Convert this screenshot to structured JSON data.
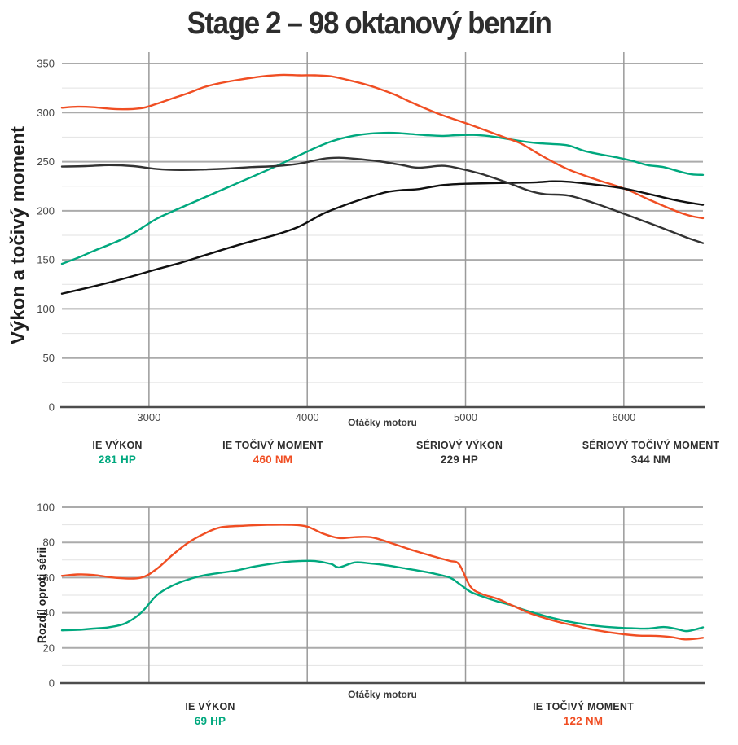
{
  "title": "Stage 2 – 98 oktanový benzín",
  "colors": {
    "green": "#00A87E",
    "red": "#F04E23",
    "dark": "#333333",
    "black": "#101010",
    "grid_major": "#ababab",
    "grid_minor": "#e2e2e2",
    "grid_vertical": "#9a9a9a",
    "axis_line": "#4d4d4d",
    "tick_text": "#474747",
    "label_text": "#3a3a3a"
  },
  "chart_data": [
    {
      "type": "line",
      "name": "power-torque",
      "ylabel": "Výkon a točivý moment",
      "xlabel": "Otáčky motoru",
      "xlim": [
        2450,
        6500
      ],
      "ylim": [
        0,
        350
      ],
      "y_ticks": [
        0,
        50,
        100,
        150,
        200,
        250,
        300,
        350
      ],
      "y_minor_step": 25,
      "x_gridlines": [
        3000,
        4000,
        5000,
        6000
      ],
      "x_tick_labels": [
        "3000",
        "4000",
        "5000",
        "6000"
      ],
      "grid": "on",
      "legend_position": "bottom",
      "series": [
        {
          "key": "ie-power",
          "name": "IE VÝKON",
          "color": "green",
          "points": [
            [
              2450,
              146
            ],
            [
              2550,
              152
            ],
            [
              2650,
              159
            ],
            [
              2750,
              165.5
            ],
            [
              2850,
              172.5
            ],
            [
              2950,
              182
            ],
            [
              3050,
              192
            ],
            [
              3150,
              199.5
            ],
            [
              3250,
              206.5
            ],
            [
              3350,
              213.5
            ],
            [
              3450,
              220.5
            ],
            [
              3550,
              227.5
            ],
            [
              3650,
              234.5
            ],
            [
              3750,
              241.5
            ],
            [
              3850,
              249
            ],
            [
              3950,
              256.5
            ],
            [
              4050,
              264
            ],
            [
              4150,
              270.5
            ],
            [
              4250,
              275
            ],
            [
              4350,
              277.8
            ],
            [
              4450,
              279.2
            ],
            [
              4550,
              279.3
            ],
            [
              4650,
              278.2
            ],
            [
              4750,
              277
            ],
            [
              4850,
              276.3
            ],
            [
              4950,
              277
            ],
            [
              5050,
              277.3
            ],
            [
              5150,
              276
            ],
            [
              5250,
              273.5
            ],
            [
              5350,
              271
            ],
            [
              5450,
              269
            ],
            [
              5550,
              268
            ],
            [
              5650,
              266.5
            ],
            [
              5750,
              261
            ],
            [
              5850,
              257.5
            ],
            [
              5950,
              254.5
            ],
            [
              6050,
              251
            ],
            [
              6150,
              246.5
            ],
            [
              6250,
              244.5
            ],
            [
              6350,
              240
            ],
            [
              6430,
              237
            ],
            [
              6500,
              236.5
            ]
          ]
        },
        {
          "key": "ie-torque",
          "name": "IE TOČIVÝ MOMENT",
          "color": "red",
          "points": [
            [
              2450,
              305
            ],
            [
              2550,
              306
            ],
            [
              2650,
              305.5
            ],
            [
              2800,
              303.5
            ],
            [
              2950,
              304.5
            ],
            [
              3050,
              309
            ],
            [
              3150,
              314.5
            ],
            [
              3250,
              320
            ],
            [
              3350,
              326
            ],
            [
              3450,
              330
            ],
            [
              3550,
              333
            ],
            [
              3650,
              335.5
            ],
            [
              3750,
              337.5
            ],
            [
              3850,
              338.5
            ],
            [
              3950,
              338
            ],
            [
              4050,
              338
            ],
            [
              4150,
              337
            ],
            [
              4250,
              333.5
            ],
            [
              4350,
              329.5
            ],
            [
              4450,
              324.5
            ],
            [
              4550,
              318.5
            ],
            [
              4650,
              311
            ],
            [
              4750,
              304
            ],
            [
              4850,
              297.5
            ],
            [
              4950,
              292
            ],
            [
              5050,
              286.5
            ],
            [
              5150,
              280.5
            ],
            [
              5250,
              274.5
            ],
            [
              5350,
              268.5
            ],
            [
              5450,
              259
            ],
            [
              5550,
              250
            ],
            [
              5650,
              242
            ],
            [
              5750,
              236
            ],
            [
              5850,
              230.5
            ],
            [
              5950,
              225.5
            ],
            [
              6050,
              219.5
            ],
            [
              6150,
              212
            ],
            [
              6250,
              205
            ],
            [
              6350,
              198.5
            ],
            [
              6430,
              194.5
            ],
            [
              6500,
              192.5
            ]
          ]
        },
        {
          "key": "serial-power",
          "name": "SÉRIOVÝ VÝKON",
          "color": "black",
          "points": [
            [
              2450,
              115.5
            ],
            [
              2600,
              121
            ],
            [
              2750,
              127
            ],
            [
              2900,
              133.5
            ],
            [
              3050,
              140.5
            ],
            [
              3200,
              147
            ],
            [
              3350,
              154.5
            ],
            [
              3500,
              162
            ],
            [
              3650,
              169
            ],
            [
              3800,
              175.5
            ],
            [
              3950,
              184
            ],
            [
              4100,
              197
            ],
            [
              4250,
              206.5
            ],
            [
              4400,
              214.5
            ],
            [
              4500,
              219
            ],
            [
              4600,
              221
            ],
            [
              4700,
              222
            ],
            [
              4850,
              226
            ],
            [
              5000,
              227.5
            ],
            [
              5150,
              228
            ],
            [
              5300,
              228.5
            ],
            [
              5450,
              229
            ],
            [
              5550,
              230
            ],
            [
              5650,
              229.5
            ],
            [
              5800,
              227
            ],
            [
              5950,
              224
            ],
            [
              6050,
              221
            ],
            [
              6200,
              215.5
            ],
            [
              6350,
              210
            ],
            [
              6500,
              206
            ]
          ]
        },
        {
          "key": "serial-torque",
          "name": "SÉRIOVÝ TOČIVÝ MOMENT",
          "color": "dark",
          "points": [
            [
              2450,
              245
            ],
            [
              2600,
              245.5
            ],
            [
              2750,
              246.5
            ],
            [
              2900,
              245.5
            ],
            [
              3050,
              242.5
            ],
            [
              3200,
              241.5
            ],
            [
              3350,
              242
            ],
            [
              3500,
              243
            ],
            [
              3650,
              244.5
            ],
            [
              3800,
              245.5
            ],
            [
              3950,
              248
            ],
            [
              4100,
              253
            ],
            [
              4200,
              254
            ],
            [
              4300,
              253
            ],
            [
              4450,
              250.5
            ],
            [
              4600,
              246.5
            ],
            [
              4700,
              243.8
            ],
            [
              4850,
              245.8
            ],
            [
              4950,
              243.5
            ],
            [
              5100,
              237.5
            ],
            [
              5250,
              229.5
            ],
            [
              5400,
              220.5
            ],
            [
              5500,
              217
            ],
            [
              5650,
              215.5
            ],
            [
              5800,
              208.5
            ],
            [
              5950,
              200
            ],
            [
              6100,
              191
            ],
            [
              6250,
              182
            ],
            [
              6400,
              172.5
            ],
            [
              6500,
              167
            ]
          ]
        }
      ],
      "legend": [
        {
          "label": "IE VÝKON",
          "value": "281 HP",
          "color": "green"
        },
        {
          "label": "IE TOČIVÝ MOMENT",
          "value": "460 NM",
          "color": "red"
        },
        {
          "label": "SÉRIOVÝ VÝKON",
          "value": "229 HP",
          "color": "dark"
        },
        {
          "label": "SÉRIOVÝ TOČIVÝ MOMENT",
          "value": "344 NM",
          "color": "dark"
        }
      ]
    },
    {
      "type": "line",
      "name": "difference-vs-stock",
      "ylabel": "Rozdíl oproti sérii",
      "xlabel": "Otáčky motoru",
      "xlim": [
        2450,
        6500
      ],
      "ylim": [
        0,
        100
      ],
      "y_ticks": [
        0,
        20,
        40,
        60,
        80,
        100
      ],
      "y_minor_step": 10,
      "x_gridlines": [
        3000,
        4000,
        5000,
        6000
      ],
      "x_tick_labels": [],
      "grid": "on",
      "legend_position": "bottom",
      "series": [
        {
          "key": "ie-power-diff",
          "name": "IE VÝKON",
          "color": "green",
          "points": [
            [
              2450,
              30
            ],
            [
              2550,
              30.3
            ],
            [
              2650,
              31
            ],
            [
              2750,
              31.8
            ],
            [
              2850,
              34
            ],
            [
              2950,
              40
            ],
            [
              3050,
              50
            ],
            [
              3150,
              55.5
            ],
            [
              3250,
              59
            ],
            [
              3350,
              61.3
            ],
            [
              3450,
              62.7
            ],
            [
              3550,
              64
            ],
            [
              3650,
              66
            ],
            [
              3750,
              67.5
            ],
            [
              3850,
              68.8
            ],
            [
              3950,
              69.4
            ],
            [
              4050,
              69.4
            ],
            [
              4150,
              67.8
            ],
            [
              4200,
              65.8
            ],
            [
              4300,
              68.6
            ],
            [
              4400,
              68
            ],
            [
              4500,
              67
            ],
            [
              4600,
              65.5
            ],
            [
              4700,
              64
            ],
            [
              4800,
              62.3
            ],
            [
              4900,
              60
            ],
            [
              4960,
              56.5
            ],
            [
              5030,
              52
            ],
            [
              5100,
              49.5
            ],
            [
              5200,
              46.5
            ],
            [
              5300,
              44
            ],
            [
              5350,
              42.2
            ],
            [
              5450,
              39.5
            ],
            [
              5550,
              37
            ],
            [
              5650,
              35
            ],
            [
              5750,
              33.5
            ],
            [
              5850,
              32.3
            ],
            [
              5950,
              31.6
            ],
            [
              6050,
              31.2
            ],
            [
              6150,
              31
            ],
            [
              6250,
              31.9
            ],
            [
              6330,
              30.9
            ],
            [
              6400,
              29.6
            ],
            [
              6500,
              31.7
            ]
          ]
        },
        {
          "key": "ie-torque-diff",
          "name": "IE TOČIVÝ MOMENT",
          "color": "red",
          "points": [
            [
              2450,
              61
            ],
            [
              2550,
              61.8
            ],
            [
              2650,
              61.5
            ],
            [
              2800,
              59.8
            ],
            [
              2950,
              60
            ],
            [
              3050,
              65
            ],
            [
              3150,
              73
            ],
            [
              3250,
              80
            ],
            [
              3350,
              85
            ],
            [
              3450,
              88.5
            ],
            [
              3600,
              89.5
            ],
            [
              3750,
              90
            ],
            [
              3900,
              90
            ],
            [
              4000,
              89
            ],
            [
              4100,
              85
            ],
            [
              4200,
              82.5
            ],
            [
              4300,
              83
            ],
            [
              4400,
              83
            ],
            [
              4500,
              80.5
            ],
            [
              4650,
              76
            ],
            [
              4800,
              72
            ],
            [
              4900,
              69.5
            ],
            [
              4960,
              67.5
            ],
            [
              5030,
              55
            ],
            [
              5100,
              50.8
            ],
            [
              5200,
              48
            ],
            [
              5300,
              44
            ],
            [
              5400,
              40
            ],
            [
              5500,
              37
            ],
            [
              5600,
              34.5
            ],
            [
              5700,
              32.5
            ],
            [
              5800,
              30.5
            ],
            [
              5900,
              29
            ],
            [
              6000,
              27.8
            ],
            [
              6100,
              27
            ],
            [
              6200,
              26.9
            ],
            [
              6300,
              26.2
            ],
            [
              6380,
              24.9
            ],
            [
              6450,
              25.2
            ],
            [
              6500,
              25.8
            ]
          ]
        }
      ],
      "legend": [
        {
          "label": "IE VÝKON",
          "value": "69 HP",
          "color": "green"
        },
        {
          "label": "IE TOČIVÝ MOMENT",
          "value": "122 NM",
          "color": "red"
        }
      ]
    }
  ]
}
